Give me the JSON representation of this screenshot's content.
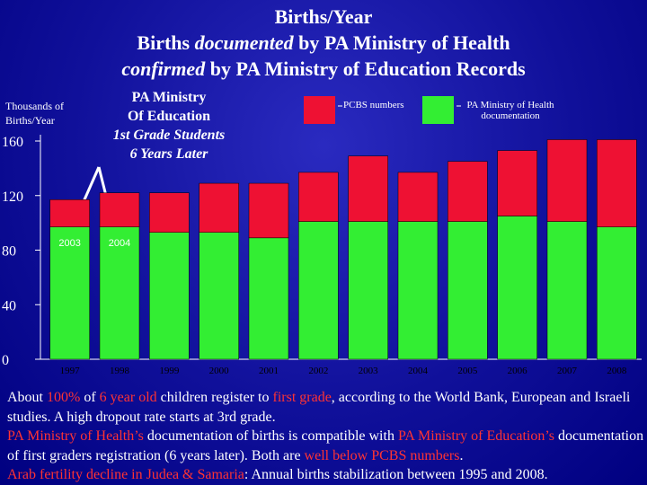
{
  "title": {
    "line1": "Births/Year",
    "line2": [
      "Births ",
      "documented",
      " by PA Ministry of Health"
    ],
    "line3": [
      "confirmed",
      " by PA Ministry of Education Records"
    ]
  },
  "chart_data": {
    "type": "bar",
    "stacked": true,
    "y_label": "Thousands of Births/Year",
    "annotation": [
      "PA Ministry",
      "Of Education",
      "1st Grade Students",
      "6 Years Later"
    ],
    "bar_labels": [
      "2003",
      "2004"
    ],
    "categories": [
      "1997",
      "1998",
      "1999",
      "2000",
      "2001",
      "2002",
      "2003",
      "2004",
      "2005",
      "2006",
      "2007",
      "2008"
    ],
    "series": [
      {
        "name": "PA Ministry of Health documentation",
        "color": "#33ee33",
        "values": [
          97,
          97,
          93,
          93,
          89,
          101,
          101,
          101,
          101,
          105,
          101,
          97
        ]
      },
      {
        "name": "PCBS numbers",
        "color": "#ee1133",
        "values": [
          20,
          25,
          29,
          36,
          40,
          36,
          48,
          36,
          44,
          48,
          60,
          64
        ]
      }
    ],
    "ylim": [
      0,
      160
    ],
    "yticks": [
      0,
      40,
      80,
      120,
      160
    ]
  },
  "notes": [
    [
      "About ",
      "100%",
      " of ",
      "6 year old",
      " children register to ",
      "first grade",
      ", according to the World Bank, European and Israeli studies. A high dropout rate starts at 3rd grade."
    ],
    [
      "PA Ministry of Health’s",
      " documentation of births is compatible with ",
      "PA Ministry of Education’s",
      " documentation of first graders registration (6 years later). Both are ",
      "well below PCBS numbers",
      "."
    ],
    [
      "Arab fertility decline in Judea & Samaria",
      ": Annual births stabilization between 1995 and 2008."
    ]
  ]
}
